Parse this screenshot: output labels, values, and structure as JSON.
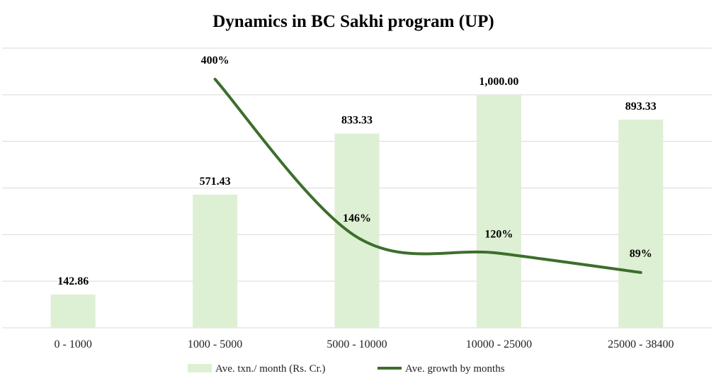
{
  "chart_data": {
    "type": "bar",
    "title": "Dynamics in BC Sakhi program (UP)",
    "categories": [
      "0 - 1000",
      "1000 - 5000",
      "5000 - 10000",
      "10000 - 25000",
      "25000 - 38400"
    ],
    "series": [
      {
        "name": "Ave. txn./ month (Rs. Cr.)",
        "type": "bar",
        "values": [
          142.86,
          571.43,
          833.33,
          1000.0,
          893.33
        ],
        "labels": [
          "142.86",
          "571.43",
          "833.33",
          "1,000.00",
          "893.33"
        ],
        "color": "#ddf0d3"
      },
      {
        "name": "Ave. growth by months",
        "type": "line",
        "smooth": true,
        "values": [
          null,
          400,
          146,
          120,
          89
        ],
        "labels": [
          "",
          "400%",
          "146%",
          "120%",
          "89%"
        ],
        "color": "#3d6e2c"
      }
    ],
    "ylim": [
      0,
      1200
    ],
    "secondary_ylim": [
      0,
      450
    ],
    "grid": true,
    "legend": "bottom"
  }
}
